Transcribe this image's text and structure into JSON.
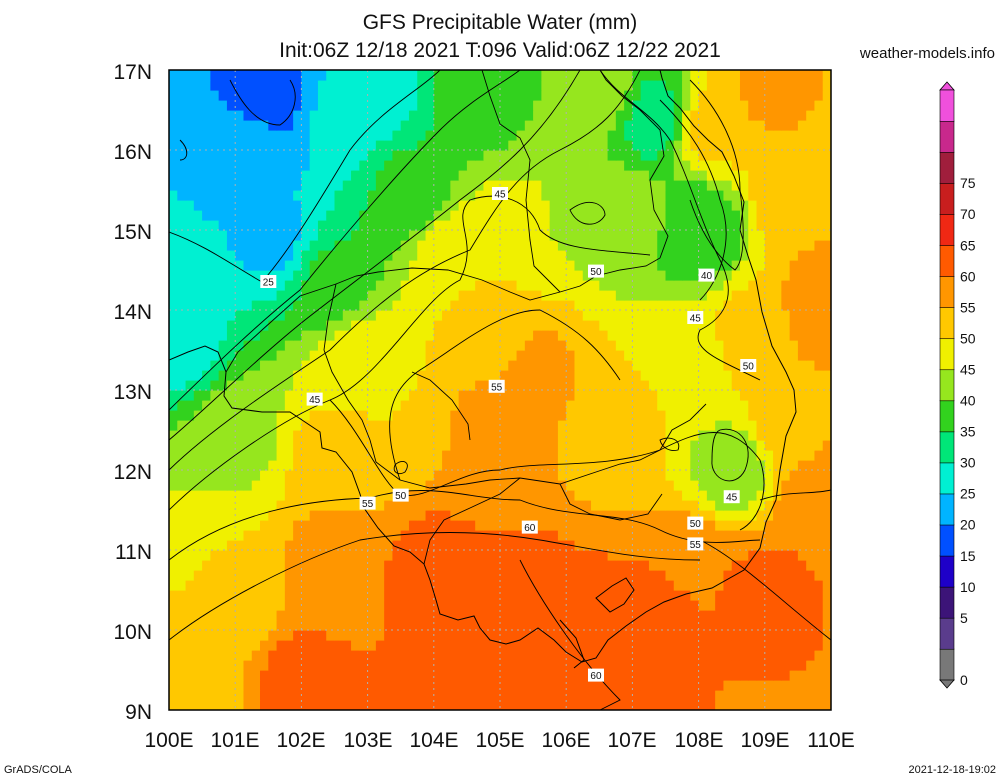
{
  "header": {
    "title_line1": "GFS Precipitable Water (mm)",
    "title_line2": "Init:06Z 12/18 2021 T:096 Valid:06Z 12/22 2021",
    "site": "weather-models.info"
  },
  "footer": {
    "left": "GrADS/COLA",
    "right": "2021-12-18-19:02"
  },
  "map": {
    "lat_labels": [
      "17N",
      "16N",
      "15N",
      "14N",
      "13N",
      "12N",
      "11N",
      "10N",
      "9N"
    ],
    "lon_labels": [
      "100E",
      "101E",
      "102E",
      "103E",
      "104E",
      "105E",
      "106E",
      "107E",
      "108E",
      "109E",
      "110E"
    ]
  },
  "contour_labels": [
    {
      "text": "25",
      "lon": 101.5,
      "lat": 14.35
    },
    {
      "text": "45",
      "lon": 105.0,
      "lat": 15.45
    },
    {
      "text": "50",
      "lon": 106.45,
      "lat": 14.48
    },
    {
      "text": "40",
      "lon": 108.12,
      "lat": 14.43
    },
    {
      "text": "45",
      "lon": 107.95,
      "lat": 13.9
    },
    {
      "text": "50",
      "lon": 108.75,
      "lat": 13.3
    },
    {
      "text": "45",
      "lon": 102.2,
      "lat": 12.88
    },
    {
      "text": "55",
      "lon": 104.95,
      "lat": 13.04
    },
    {
      "text": "50",
      "lon": 103.5,
      "lat": 11.68
    },
    {
      "text": "55",
      "lon": 103.0,
      "lat": 11.58
    },
    {
      "text": "45",
      "lon": 108.5,
      "lat": 11.66
    },
    {
      "text": "60",
      "lon": 105.45,
      "lat": 11.28
    },
    {
      "text": "50",
      "lon": 107.95,
      "lat": 11.33
    },
    {
      "text": "55",
      "lon": 107.95,
      "lat": 11.07
    },
    {
      "text": "60",
      "lon": 106.45,
      "lat": 9.43
    }
  ],
  "colorbar": {
    "labels": [
      "75",
      "70",
      "65",
      "60",
      "55",
      "50",
      "45",
      "40",
      "35",
      "30",
      "25",
      "20",
      "15",
      "10",
      "5",
      "0"
    ],
    "colors": [
      "#787878",
      "#5a3c8c",
      "#3c1478",
      "#1e00c8",
      "#0050ff",
      "#00b4ff",
      "#00f0d2",
      "#00e678",
      "#32d21e",
      "#96e61e",
      "#f0f000",
      "#ffc800",
      "#ff9600",
      "#ff5a00",
      "#f02814",
      "#c81e1e",
      "#a01e3c",
      "#c8288c",
      "#f050dc"
    ]
  },
  "precip_centers": [
    {
      "lon": 101.5,
      "lat": 16.7,
      "value": 17
    },
    {
      "lon": 101.2,
      "lat": 16.0,
      "value": 23
    },
    {
      "lon": 101.6,
      "lat": 14.9,
      "value": 24
    },
    {
      "lon": 102.6,
      "lat": 16.4,
      "value": 26
    },
    {
      "lon": 103.2,
      "lat": 16.8,
      "value": 28
    },
    {
      "lon": 100.2,
      "lat": 13.6,
      "value": 28
    },
    {
      "lon": 102.4,
      "lat": 14.3,
      "value": 36
    },
    {
      "lon": 103.6,
      "lat": 15.5,
      "value": 36
    },
    {
      "lon": 104.6,
      "lat": 16.7,
      "value": 37
    },
    {
      "lon": 105.8,
      "lat": 16.8,
      "value": 40
    },
    {
      "lon": 106.6,
      "lat": 16.7,
      "value": 42
    },
    {
      "lon": 107.3,
      "lat": 16.4,
      "value": 32
    },
    {
      "lon": 108.0,
      "lat": 15.0,
      "value": 35
    },
    {
      "lon": 107.0,
      "lat": 15.2,
      "value": 42
    },
    {
      "lon": 106.2,
      "lat": 15.25,
      "value": 44
    },
    {
      "lon": 105.2,
      "lat": 15.0,
      "value": 47
    },
    {
      "lon": 104.3,
      "lat": 14.7,
      "value": 48
    },
    {
      "lon": 104.8,
      "lat": 13.8,
      "value": 53
    },
    {
      "lon": 105.6,
      "lat": 13.2,
      "value": 56
    },
    {
      "lon": 104.8,
      "lat": 12.5,
      "value": 57
    },
    {
      "lon": 103.6,
      "lat": 12.9,
      "value": 50
    },
    {
      "lon": 102.8,
      "lat": 13.4,
      "value": 48
    },
    {
      "lon": 102.5,
      "lat": 12.2,
      "value": 52
    },
    {
      "lon": 101.0,
      "lat": 12.5,
      "value": 43
    },
    {
      "lon": 100.3,
      "lat": 11.5,
      "value": 45
    },
    {
      "lon": 101.0,
      "lat": 10.5,
      "value": 52
    },
    {
      "lon": 102.5,
      "lat": 10.8,
      "value": 58
    },
    {
      "lon": 104.0,
      "lat": 10.7,
      "value": 62
    },
    {
      "lon": 105.5,
      "lat": 10.2,
      "value": 63
    },
    {
      "lon": 107.0,
      "lat": 10.0,
      "value": 62
    },
    {
      "lon": 104.5,
      "lat": 9.3,
      "value": 63
    },
    {
      "lon": 102.0,
      "lat": 9.3,
      "value": 62
    },
    {
      "lon": 100.4,
      "lat": 9.5,
      "value": 52
    },
    {
      "lon": 107.0,
      "lat": 12.7,
      "value": 51
    },
    {
      "lon": 107.8,
      "lat": 13.3,
      "value": 47
    },
    {
      "lon": 108.5,
      "lat": 12.0,
      "value": 42
    },
    {
      "lon": 108.8,
      "lat": 13.7,
      "value": 52
    },
    {
      "lon": 109.4,
      "lat": 12.6,
      "value": 54
    },
    {
      "lon": 109.5,
      "lat": 15.5,
      "value": 55
    },
    {
      "lon": 109.8,
      "lat": 14.0,
      "value": 57
    },
    {
      "lon": 109.8,
      "lat": 11.5,
      "value": 60
    },
    {
      "lon": 109.0,
      "lat": 10.5,
      "value": 61
    },
    {
      "lon": 108.0,
      "lat": 10.8,
      "value": 60
    },
    {
      "lon": 109.0,
      "lat": 16.8,
      "value": 56
    },
    {
      "lon": 108.2,
      "lat": 16.3,
      "value": 52
    }
  ]
}
